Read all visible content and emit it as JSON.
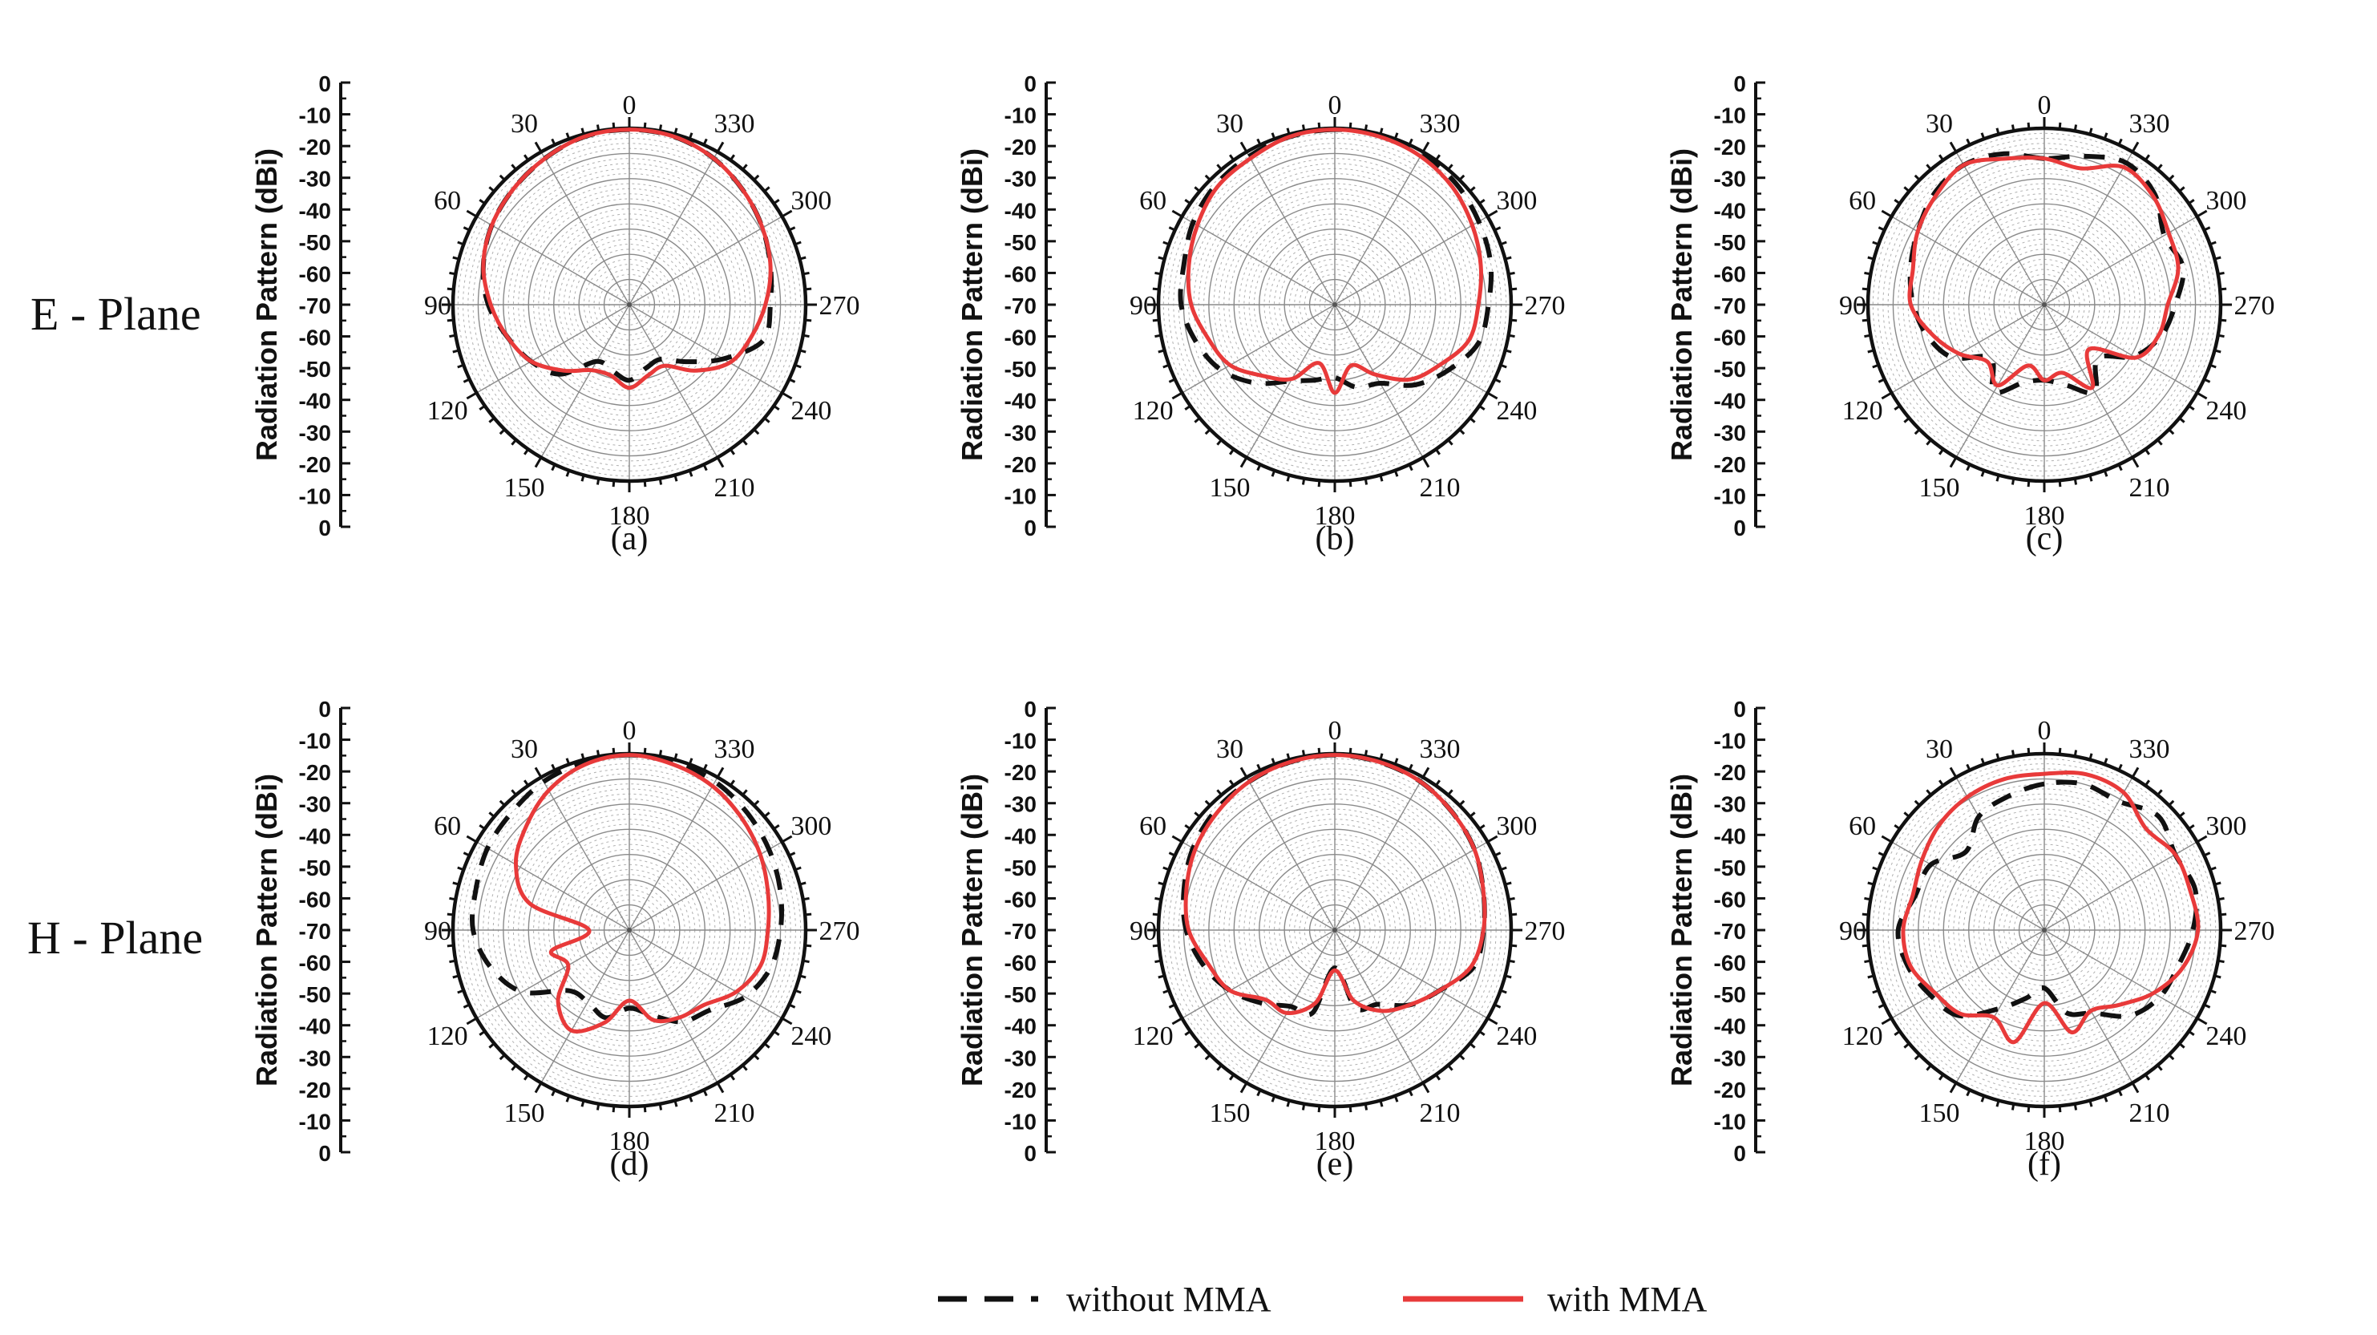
{
  "rows": [
    {
      "label": "E - Plane"
    },
    {
      "label": "H - Plane"
    }
  ],
  "legend": [
    {
      "name": "without MMA",
      "color": "#111111",
      "style": "dashed"
    },
    {
      "name": "with MMA",
      "color": "#e83a3a",
      "style": "solid"
    }
  ],
  "chart_data": [
    {
      "type": "line",
      "subtype": "polar",
      "panel": "(a)",
      "row": "E - Plane",
      "ylabel": "Radiation Pattern (dBi)",
      "radial_range": [
        -70,
        0
      ],
      "y_ticks": [
        "0",
        "-10",
        "-20",
        "-30",
        "-40",
        "-50",
        "-60",
        "-70",
        "-60",
        "-50",
        "-40",
        "-30",
        "-20",
        "-10",
        "0"
      ],
      "angle_ticks": [
        "0",
        "30",
        "60",
        "90",
        "120",
        "150",
        "180",
        "210",
        "240",
        "270",
        "300",
        "330"
      ],
      "angle_deg": [
        0,
        15,
        30,
        45,
        60,
        75,
        90,
        105,
        120,
        135,
        150,
        165,
        180,
        195,
        210,
        225,
        240,
        255,
        270,
        285,
        300,
        315,
        330,
        345
      ],
      "series": [
        {
          "name": "without MMA",
          "values": [
            -0.5,
            -1,
            -3,
            -5,
            -7,
            -10,
            -14,
            -20,
            -25,
            -31,
            -44,
            -43,
            -40,
            -44,
            -45,
            -38,
            -27,
            -15,
            -14,
            -12,
            -9,
            -6,
            -3,
            -1
          ]
        },
        {
          "name": "with MMA",
          "values": [
            -0.5,
            -1,
            -3,
            -5,
            -7,
            -10,
            -15,
            -20,
            -25,
            -33,
            -40,
            -41,
            -37,
            -41,
            -42,
            -33,
            -24,
            -20,
            -16,
            -12,
            -9,
            -6,
            -3,
            -1
          ]
        }
      ]
    },
    {
      "type": "line",
      "subtype": "polar",
      "panel": "(b)",
      "row": "E - Plane",
      "ylabel": "Radiation Pattern (dBi)",
      "radial_range": [
        -70,
        0
      ],
      "y_ticks": [
        "0",
        "-10",
        "-20",
        "-30",
        "-40",
        "-50",
        "-60",
        "-70",
        "-60",
        "-50",
        "-40",
        "-30",
        "-20",
        "-10",
        "0"
      ],
      "angle_ticks": [
        "0",
        "30",
        "60",
        "90",
        "120",
        "150",
        "180",
        "210",
        "240",
        "270",
        "300",
        "330"
      ],
      "angle_deg": [
        0,
        15,
        30,
        45,
        60,
        75,
        90,
        105,
        120,
        135,
        150,
        165,
        180,
        195,
        210,
        225,
        240,
        255,
        270,
        285,
        300,
        315,
        330,
        345
      ],
      "series": [
        {
          "name": "without MMA",
          "values": [
            -0.5,
            -1,
            -2,
            -3,
            -5,
            -8,
            -9,
            -13,
            -18,
            -26,
            -35,
            -39,
            -41,
            -36,
            -34,
            -25,
            -18,
            -11,
            -9,
            -6,
            -4,
            -2,
            -1,
            -0.5
          ]
        },
        {
          "name": "with MMA",
          "values": [
            -0.5,
            -1,
            -3,
            -4,
            -7,
            -10,
            -13,
            -18,
            -22,
            -30,
            -36,
            -46,
            -35,
            -45,
            -38,
            -28,
            -22,
            -15,
            -13,
            -10,
            -7,
            -4,
            -2,
            -1
          ]
        }
      ]
    },
    {
      "type": "line",
      "subtype": "polar",
      "panel": "(c)",
      "row": "E - Plane",
      "ylabel": "Radiation Pattern (dBi)",
      "radial_range": [
        -70,
        0
      ],
      "y_ticks": [
        "0",
        "-10",
        "-20",
        "-30",
        "-40",
        "-50",
        "-60",
        "-70",
        "-60",
        "-50",
        "-40",
        "-30",
        "-20",
        "-10",
        "0"
      ],
      "angle_ticks": [
        "0",
        "30",
        "60",
        "90",
        "120",
        "150",
        "180",
        "210",
        "240",
        "270",
        "300",
        "330"
      ],
      "angle_deg": [
        0,
        15,
        30,
        45,
        60,
        75,
        90,
        105,
        120,
        135,
        150,
        165,
        180,
        195,
        210,
        225,
        240,
        255,
        270,
        285,
        300,
        315,
        330,
        345
      ],
      "series": [
        {
          "name": "without MMA",
          "values": [
            -12,
            -8,
            -6,
            -8,
            -12,
            -15,
            -18,
            -22,
            -28,
            -40,
            -30,
            -38,
            -40,
            -37,
            -30,
            -40,
            -29,
            -22,
            -18,
            -13,
            -15,
            -8,
            -5,
            -9
          ]
        },
        {
          "name": "with MMA",
          "values": [
            -12,
            -10,
            -6,
            -9,
            -12,
            -16,
            -17,
            -24,
            -31,
            -38,
            -33,
            -45,
            -40,
            -42,
            -32,
            -45,
            -28,
            -23,
            -21,
            -15,
            -13,
            -9,
            -7,
            -14
          ]
        }
      ]
    },
    {
      "type": "line",
      "subtype": "polar",
      "panel": "(d)",
      "row": "H - Plane",
      "ylabel": "Radiation Pattern (dBi)",
      "radial_range": [
        -70,
        0
      ],
      "y_ticks": [
        "0",
        "-10",
        "-20",
        "-30",
        "-40",
        "-50",
        "-60",
        "-70",
        "-60",
        "-50",
        "-40",
        "-30",
        "-20",
        "-10",
        "0"
      ],
      "angle_ticks": [
        "0",
        "30",
        "60",
        "90",
        "120",
        "150",
        "180",
        "210",
        "240",
        "270",
        "300",
        "330"
      ],
      "angle_deg": [
        0,
        15,
        30,
        45,
        60,
        75,
        90,
        105,
        120,
        135,
        150,
        165,
        180,
        195,
        210,
        225,
        240,
        255,
        270,
        285,
        300,
        315,
        330,
        345
      ],
      "series": [
        {
          "name": "without MMA",
          "values": [
            -0.5,
            -1,
            -2,
            -4,
            -5,
            -7,
            -8,
            -13,
            -21,
            -36,
            -37,
            -34,
            -39,
            -35,
            -28,
            -25,
            -17,
            -12,
            -10,
            -8,
            -6,
            -4,
            -2,
            -1
          ]
        },
        {
          "name": "with MMA",
          "values": [
            -0.5,
            -2,
            -6,
            -12,
            -18,
            -29,
            -54,
            -38,
            -42,
            -30,
            -24,
            -32,
            -42,
            -33,
            -30,
            -28,
            -21,
            -16,
            -15,
            -13,
            -10,
            -7,
            -4,
            -2
          ]
        }
      ]
    },
    {
      "type": "line",
      "subtype": "polar",
      "panel": "(e)",
      "row": "H - Plane",
      "ylabel": "Radiation Pattern (dBi)",
      "radial_range": [
        -70,
        0
      ],
      "y_ticks": [
        "0",
        "-10",
        "-20",
        "-30",
        "-40",
        "-50",
        "-60",
        "-70",
        "-60",
        "-50",
        "-40",
        "-30",
        "-20",
        "-10",
        "0"
      ],
      "angle_ticks": [
        "0",
        "30",
        "60",
        "90",
        "120",
        "150",
        "180",
        "210",
        "240",
        "270",
        "300",
        "330"
      ],
      "angle_deg": [
        0,
        15,
        30,
        45,
        60,
        75,
        90,
        105,
        120,
        135,
        150,
        165,
        180,
        195,
        210,
        225,
        240,
        255,
        270,
        285,
        300,
        315,
        330,
        345
      ],
      "series": [
        {
          "name": "without MMA",
          "values": [
            -0.5,
            -1,
            -2,
            -3,
            -5,
            -8,
            -11,
            -16,
            -22,
            -29,
            -35,
            -36,
            -55,
            -38,
            -36,
            -28,
            -22,
            -13,
            -11,
            -9,
            -6,
            -4,
            -2,
            -1
          ]
        },
        {
          "name": "with MMA",
          "values": [
            -0.5,
            -1,
            -2,
            -4,
            -6,
            -9,
            -12,
            -18,
            -22,
            -31,
            -32,
            -40,
            -54,
            -41,
            -33,
            -28,
            -22,
            -14,
            -11,
            -9,
            -6,
            -4,
            -2,
            -1
          ]
        }
      ]
    },
    {
      "type": "line",
      "subtype": "polar",
      "panel": "(f)",
      "row": "H - Plane",
      "ylabel": "Radiation Pattern (dBi)",
      "radial_range": [
        -70,
        0
      ],
      "y_ticks": [
        "0",
        "-10",
        "-20",
        "-30",
        "-40",
        "-50",
        "-60",
        "-70",
        "-60",
        "-50",
        "-40",
        "-30",
        "-20",
        "-10",
        "0"
      ],
      "angle_ticks": [
        "0",
        "30",
        "60",
        "90",
        "120",
        "150",
        "180",
        "210",
        "240",
        "270",
        "300",
        "330"
      ],
      "angle_deg": [
        0,
        15,
        30,
        45,
        60,
        75,
        90,
        105,
        120,
        135,
        150,
        165,
        180,
        195,
        210,
        225,
        240,
        255,
        270,
        285,
        300,
        315,
        330,
        345
      ],
      "series": [
        {
          "name": "without MMA",
          "values": [
            -12,
            -15,
            -18,
            -26,
            -18,
            -17,
            -12,
            -14,
            -18,
            -22,
            -34,
            -42,
            -47,
            -36,
            -32,
            -22,
            -17,
            -15,
            -11,
            -8,
            -10,
            -6,
            -11,
            -10
          ]
        },
        {
          "name": "with MMA",
          "values": [
            -8,
            -8,
            -9,
            -11,
            -14,
            -16,
            -14,
            -15,
            -20,
            -23,
            -30,
            -24,
            -41,
            -28,
            -33,
            -28,
            -20,
            -13,
            -9,
            -10,
            -10,
            -13,
            -7,
            -6
          ]
        }
      ]
    }
  ]
}
